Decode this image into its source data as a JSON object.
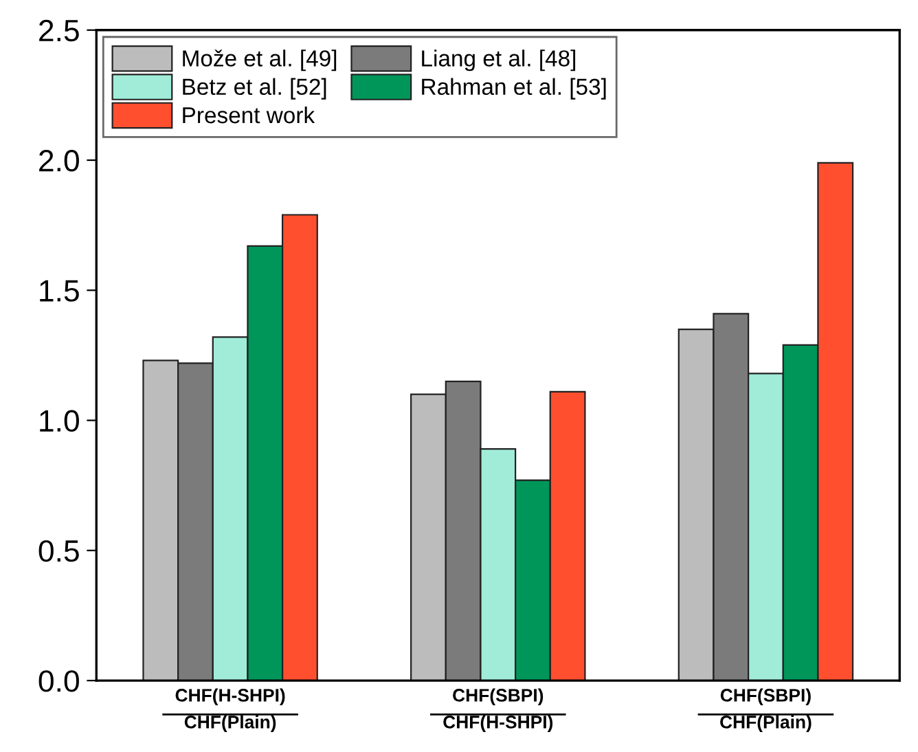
{
  "chart_data": {
    "type": "bar",
    "categories": [
      "CHF(H-SHPI)\nCHF(Plain)",
      "CHF(SBPI)\nCHF(H-SHPI)",
      "CHF(SBPI)\nCHF(Plain)"
    ],
    "series": [
      {
        "name": "Može et al. [49]",
        "color": "#bcbcbc",
        "values": [
          1.23,
          1.1,
          1.35
        ]
      },
      {
        "name": "Liang et al. [48]",
        "color": "#7b7b7b",
        "values": [
          1.22,
          1.15,
          1.41
        ]
      },
      {
        "name": "Betz et al. [52]",
        "color": "#a0ecd9",
        "values": [
          1.32,
          0.89,
          1.18
        ]
      },
      {
        "name": "Rahman et al. [53]",
        "color": "#00965a",
        "values": [
          1.67,
          0.77,
          1.29
        ]
      },
      {
        "name": "Present work",
        "color": "#ff4f2f",
        "values": [
          1.79,
          1.11,
          1.99
        ]
      }
    ],
    "ylim": [
      0,
      2.5
    ],
    "yticks": [
      {
        "value": 0,
        "label": "0.0"
      },
      {
        "value": 0.5,
        "label": "0.5"
      },
      {
        "value": 1,
        "label": "1.0"
      },
      {
        "value": 1.5,
        "label": "1.5"
      },
      {
        "value": 2,
        "label": "2.0"
      },
      {
        "value": 2.5,
        "label": "2.5"
      }
    ],
    "legend": "top left",
    "grid": false
  }
}
